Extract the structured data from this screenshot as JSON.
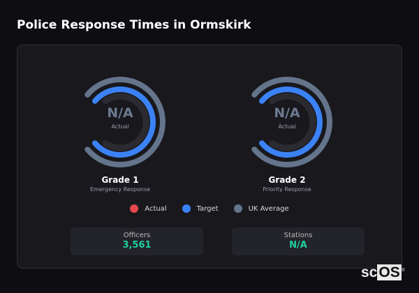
{
  "title": "Police Response Times in Ormskirk",
  "gauges": [
    {
      "value": "N/A",
      "value_label": "Actual",
      "name": "Grade 1",
      "subtitle": "Emergency Response"
    },
    {
      "value": "N/A",
      "value_label": "Actual",
      "name": "Grade 2",
      "subtitle": "Priority Response"
    }
  ],
  "legend": [
    {
      "label": "Actual",
      "color": "#e5484d"
    },
    {
      "label": "Target",
      "color": "#3b82f6"
    },
    {
      "label": "UK Average",
      "color": "#64748b"
    }
  ],
  "stats": [
    {
      "label": "Officers",
      "value": "3,561"
    },
    {
      "label": "Stations",
      "value": "N/A"
    }
  ],
  "logo": {
    "text_a": "sc",
    "text_b": "OS",
    "mark": "®"
  }
}
